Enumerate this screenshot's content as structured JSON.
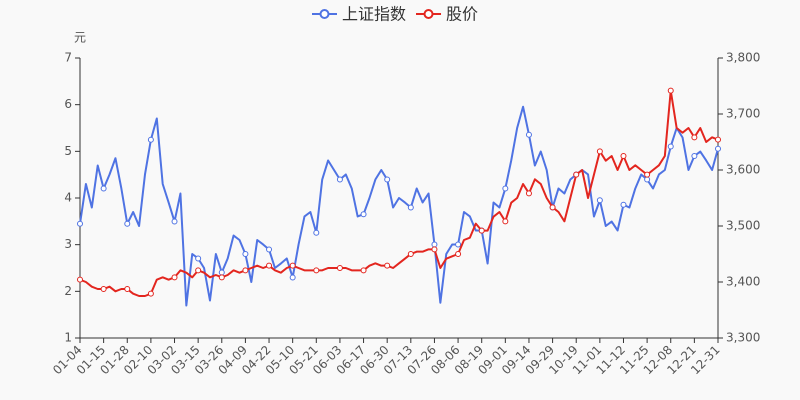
{
  "chart_data": {
    "type": "line",
    "y_label": "元",
    "categories": [
      "01-04",
      null,
      null,
      null,
      "01-15",
      null,
      null,
      null,
      "01-28",
      null,
      null,
      null,
      "02-10",
      null,
      null,
      null,
      "03-02",
      null,
      null,
      null,
      "03-15",
      null,
      null,
      null,
      "03-26",
      null,
      null,
      null,
      "04-09",
      null,
      null,
      null,
      "04-22",
      null,
      null,
      null,
      "05-10",
      null,
      null,
      null,
      "05-21",
      null,
      null,
      null,
      "06-03",
      null,
      null,
      null,
      "06-17",
      null,
      null,
      null,
      "06-30",
      null,
      null,
      null,
      "07-13",
      null,
      null,
      null,
      "07-26",
      null,
      null,
      null,
      "08-06",
      null,
      null,
      null,
      "08-19",
      null,
      null,
      null,
      "09-01",
      null,
      null,
      null,
      "09-14",
      null,
      null,
      null,
      "09-29",
      null,
      null,
      null,
      "10-19",
      null,
      null,
      null,
      "11-01",
      null,
      null,
      null,
      "11-12",
      null,
      null,
      null,
      "11-25",
      null,
      null,
      null,
      "12-08",
      null,
      null,
      null,
      "12-21",
      null,
      null,
      null,
      "12-31"
    ],
    "series": [
      {
        "name": "上证指数",
        "color": "#4f73e3",
        "axis": "y2",
        "values": [
          3504,
          3575,
          3533,
          3608,
          3567,
          3592,
          3621,
          3567,
          3504,
          3525,
          3500,
          3592,
          3654,
          3692,
          3575,
          3542,
          3508,
          3558,
          3358,
          3450,
          3442,
          3425,
          3367,
          3450,
          3417,
          3442,
          3483,
          3475,
          3450,
          3400,
          3475,
          3467,
          3458,
          3425,
          3433,
          3442,
          3408,
          3467,
          3517,
          3525,
          3488,
          3583,
          3617,
          3600,
          3583,
          3592,
          3567,
          3517,
          3521,
          3550,
          3583,
          3600,
          3583,
          3533,
          3550,
          3542,
          3533,
          3567,
          3542,
          3558,
          3467,
          3363,
          3450,
          3467,
          3467,
          3525,
          3517,
          3492,
          3492,
          3433,
          3542,
          3533,
          3567,
          3617,
          3675,
          3713,
          3663,
          3608,
          3633,
          3600,
          3533,
          3567,
          3558,
          3583,
          3592,
          3600,
          3592,
          3517,
          3546,
          3500,
          3508,
          3492,
          3538,
          3533,
          3567,
          3592,
          3583,
          3567,
          3592,
          3600,
          3642,
          3675,
          3658,
          3600,
          3625,
          3633,
          3617,
          3600,
          3638
        ]
      },
      {
        "name": "股价",
        "color": "#e3261f",
        "values": [
          2.25,
          2.2,
          2.1,
          2.05,
          2.05,
          2.1,
          2.0,
          2.05,
          2.05,
          1.95,
          1.9,
          1.9,
          1.95,
          2.25,
          2.3,
          2.25,
          2.3,
          2.45,
          2.4,
          2.3,
          2.45,
          2.4,
          2.3,
          2.35,
          2.3,
          2.35,
          2.45,
          2.4,
          2.45,
          2.5,
          2.55,
          2.5,
          2.55,
          2.45,
          2.4,
          2.5,
          2.55,
          2.5,
          2.45,
          2.45,
          2.45,
          2.45,
          2.5,
          2.5,
          2.5,
          2.5,
          2.45,
          2.45,
          2.45,
          2.55,
          2.6,
          2.55,
          2.55,
          2.5,
          2.6,
          2.7,
          2.8,
          2.85,
          2.85,
          2.9,
          2.9,
          2.5,
          2.7,
          2.75,
          2.8,
          3.1,
          3.15,
          3.45,
          3.3,
          3.3,
          3.6,
          3.7,
          3.5,
          3.9,
          4.0,
          4.3,
          4.1,
          4.4,
          4.3,
          4.0,
          3.8,
          3.7,
          3.5,
          4.0,
          4.5,
          4.6,
          4.0,
          4.5,
          5.0,
          4.8,
          4.9,
          4.6,
          4.9,
          4.6,
          4.7,
          4.6,
          4.5,
          4.6,
          4.7,
          4.9,
          6.3,
          5.5,
          5.4,
          5.5,
          5.3,
          5.5,
          5.2,
          5.3,
          5.25
        ]
      }
    ],
    "ylim": [
      1,
      7
    ],
    "yticks": [
      1,
      2,
      3,
      4,
      5,
      6,
      7
    ],
    "y2lim": [
      3300,
      3800
    ],
    "y2ticks": [
      {
        "value": 3300,
        "label": "3,300"
      },
      {
        "value": 3400,
        "label": "3,400"
      },
      {
        "value": 3500,
        "label": "3,500"
      },
      {
        "value": 3600,
        "label": "3,600"
      },
      {
        "value": 3700,
        "label": "3,700"
      },
      {
        "value": 3800,
        "label": "3,800"
      }
    ],
    "legend": "top"
  }
}
